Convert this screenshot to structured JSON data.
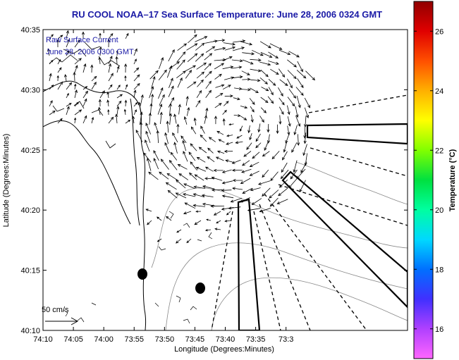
{
  "title": "RU COOL  NOAA–17  Sea Surface Temperature:  June 28, 2006 0324 GMT",
  "overlay": {
    "line1": "Raw Surface Current",
    "line2": "June 28, 2006 0300 GMT"
  },
  "map": {
    "lon_range_minutes_west": [
      3790,
      3850
    ],
    "lat_range_minutes_north": [
      2410,
      2435
    ],
    "xlabel": "Longitude (Degrees:Minutes)",
    "ylabel": "Latitude (Degrees:Minutes)",
    "x_ticks": [
      {
        "label": "74:10",
        "lon_min": 3850
      },
      {
        "label": "74:05",
        "lon_min": 3845
      },
      {
        "label": "74:00",
        "lon_min": 3840
      },
      {
        "label": "73:55",
        "lon_min": 3835
      },
      {
        "label": "73:50",
        "lon_min": 3830
      },
      {
        "label": "73:45",
        "lon_min": 3825
      },
      {
        "label": "73:40",
        "lon_min": 3820
      },
      {
        "label": "73:35",
        "lon_min": 3815
      },
      {
        "label": "73:3",
        "lon_min": 3810
      }
    ],
    "y_ticks": [
      {
        "label": "40:35",
        "lat_min": 2435
      },
      {
        "label": "40:30",
        "lat_min": 2430
      },
      {
        "label": "40:25",
        "lat_min": 2425
      },
      {
        "label": "40:20",
        "lat_min": 2420
      },
      {
        "label": "40:15",
        "lat_min": 2415
      },
      {
        "label": "40:10",
        "lat_min": 2410
      }
    ],
    "scale_label": "50 cm/s",
    "scale_icon": "arrow-right-icon"
  },
  "colorbar": {
    "label": "Temperature (°C)",
    "range": [
      15,
      27
    ],
    "ticks": [
      {
        "label": "16",
        "value": 16
      },
      {
        "label": "18",
        "value": 18
      },
      {
        "label": "20",
        "value": 20
      },
      {
        "label": "22",
        "value": 22
      },
      {
        "label": "24",
        "value": 24
      },
      {
        "label": "26",
        "value": 26
      }
    ],
    "colors": [
      "#ff66ff",
      "#b040ff",
      "#4030ff",
      "#0070ff",
      "#00d8ff",
      "#00ffa0",
      "#00e040",
      "#80ff00",
      "#ffff00",
      "#ffb000",
      "#ff5000",
      "#e00000",
      "#900000"
    ]
  }
}
